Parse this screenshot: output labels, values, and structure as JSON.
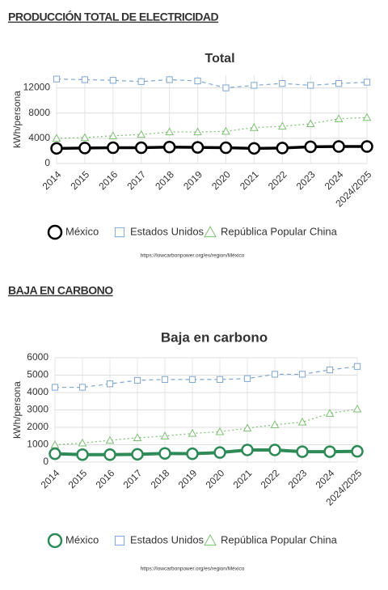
{
  "chart_data": [
    {
      "type": "line",
      "heading": "PRODUCCIÓN TOTAL DE ELECTRICIDAD",
      "title": "Total",
      "ylabel": "kWh/persona",
      "categories": [
        "2014",
        "2015",
        "2016",
        "2017",
        "2018",
        "2019",
        "2020",
        "2021",
        "2022",
        "2023",
        "2024",
        "2024/2025"
      ],
      "series": [
        {
          "name": "México",
          "color": "#000000",
          "marker": "circle",
          "style": "solid",
          "values": [
            2400,
            2450,
            2500,
            2500,
            2600,
            2550,
            2500,
            2400,
            2450,
            2650,
            2700,
            2700
          ]
        },
        {
          "name": "Estados Unidos",
          "color": "#7fa7d1",
          "marker": "square",
          "style": "dashed",
          "values": [
            13400,
            13300,
            13200,
            13000,
            13300,
            13100,
            12000,
            12400,
            12700,
            12400,
            12700,
            12900
          ]
        },
        {
          "name": "República Popular China",
          "color": "#7cbf72",
          "marker": "triangle",
          "style": "dotted",
          "values": [
            4000,
            4100,
            4400,
            4600,
            5000,
            5000,
            5100,
            5700,
            5900,
            6300,
            7100,
            7300
          ]
        }
      ],
      "ylim": [
        0,
        14000
      ],
      "yticks": [
        0,
        4000,
        8000,
        12000
      ],
      "grid": true,
      "source": "https://lowcarbonpower.org/es/region/México"
    },
    {
      "type": "line",
      "heading": "BAJA EN CARBONO",
      "title": "Baja en carbono",
      "ylabel": "kWh/persona",
      "categories": [
        "2014",
        "2015",
        "2016",
        "2017",
        "2018",
        "2019",
        "2020",
        "2021",
        "2022",
        "2023",
        "2024",
        "2024/2025"
      ],
      "series": [
        {
          "name": "México",
          "color": "#2e8b57",
          "marker": "circle",
          "style": "solid",
          "values": [
            480,
            430,
            430,
            450,
            500,
            480,
            550,
            700,
            700,
            600,
            600,
            620
          ]
        },
        {
          "name": "Estados Unidos",
          "color": "#7fa7d1",
          "marker": "square",
          "style": "dashed",
          "values": [
            4300,
            4300,
            4500,
            4700,
            4750,
            4750,
            4750,
            4800,
            5050,
            5050,
            5300,
            5500
          ]
        },
        {
          "name": "República Popular China",
          "color": "#7cbf72",
          "marker": "triangle",
          "style": "dotted",
          "values": [
            1000,
            1100,
            1250,
            1400,
            1500,
            1650,
            1750,
            1950,
            2150,
            2300,
            2800,
            3050
          ]
        }
      ],
      "ylim": [
        0,
        6000
      ],
      "yticks": [
        0,
        1000,
        2000,
        3000,
        4000,
        5000,
        6000
      ],
      "grid": true,
      "source": "https://lowcarbonpower.org/es/region/México"
    }
  ]
}
